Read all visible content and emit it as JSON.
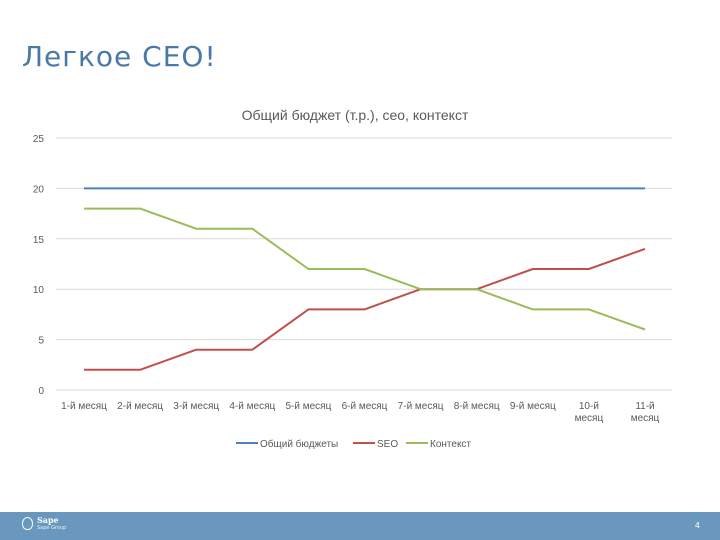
{
  "slide": {
    "title": "Легкое СЕО!",
    "page_number": "4"
  },
  "footer": {
    "logo_name": "Sape",
    "logo_sub": "Sape Group"
  },
  "colors": {
    "series1": "#4f81bd",
    "series2": "#c0504d",
    "series3": "#9bbb59",
    "grid": "#d9d9d9",
    "text": "#595959"
  },
  "chart_data": {
    "type": "line",
    "title": "Общий бюджет (т.р.),  сео, контекст",
    "xlabel": "",
    "ylabel": "",
    "ylim": [
      0,
      25
    ],
    "yticks": [
      "0",
      "5",
      "10",
      "15",
      "20",
      "25"
    ],
    "categories": [
      [
        "1-й месяц"
      ],
      [
        "2-й месяц"
      ],
      [
        "3-й месяц"
      ],
      [
        "4-й месяц"
      ],
      [
        "5-й месяц"
      ],
      [
        "6-й месяц"
      ],
      [
        "7-й месяц"
      ],
      [
        "8-й месяц"
      ],
      [
        "9-й месяц"
      ],
      [
        "10-й",
        "месяц"
      ],
      [
        "11-й",
        "месяц"
      ]
    ],
    "series": [
      {
        "name": "Общий бюджеты",
        "color": "#4f81bd",
        "values": [
          20,
          20,
          20,
          20,
          20,
          20,
          20,
          20,
          20,
          20,
          20
        ]
      },
      {
        "name": "SEO",
        "color": "#c0504d",
        "values": [
          2,
          2,
          4,
          4,
          8,
          8,
          10,
          10,
          12,
          12,
          14
        ]
      },
      {
        "name": "Контекст",
        "color": "#9bbb59",
        "values": [
          18,
          18,
          16,
          16,
          12,
          12,
          10,
          10,
          8,
          8,
          6
        ]
      }
    ],
    "legend": "bottom"
  }
}
